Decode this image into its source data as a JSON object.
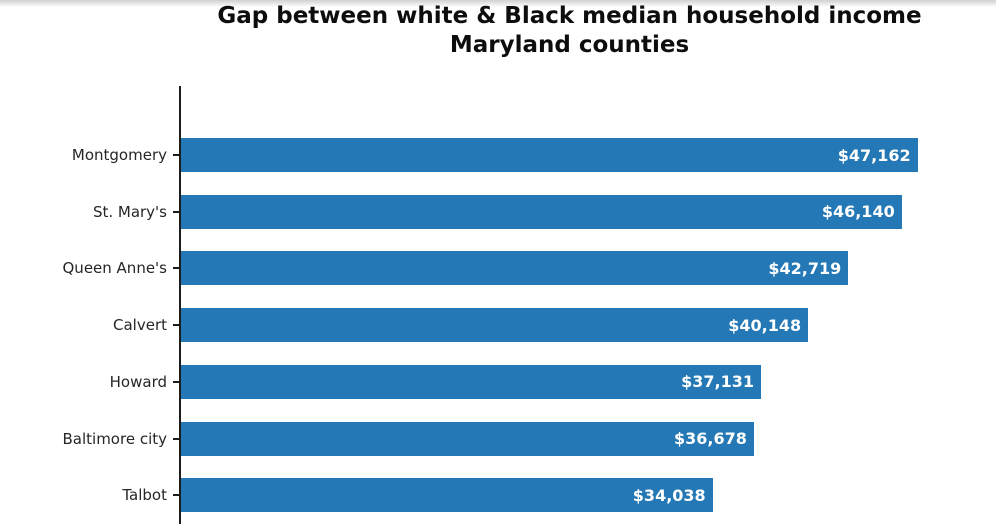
{
  "chart_data": {
    "type": "bar",
    "orientation": "horizontal",
    "title": "Gap between white & Black median household income",
    "subtitle": "Maryland counties",
    "categories": [
      "Montgomery",
      "St. Mary's",
      "Queen Anne's",
      "Calvert",
      "Howard",
      "Baltimore city",
      "Talbot"
    ],
    "values": [
      47162,
      46140,
      42719,
      40148,
      37131,
      36678,
      34038
    ],
    "value_labels": [
      "$47,162",
      "$46,140",
      "$42,719",
      "$40,148",
      "$37,131",
      "$36,678",
      "$34,038"
    ],
    "xlim": [
      0,
      50000
    ],
    "grid": false,
    "legend": null,
    "bar_color": "#2378b5",
    "value_label_color": "#ffffff",
    "axis_color": "#1c1c1c",
    "category_label_color": "#262626",
    "title_color": "#0d0d0d"
  }
}
